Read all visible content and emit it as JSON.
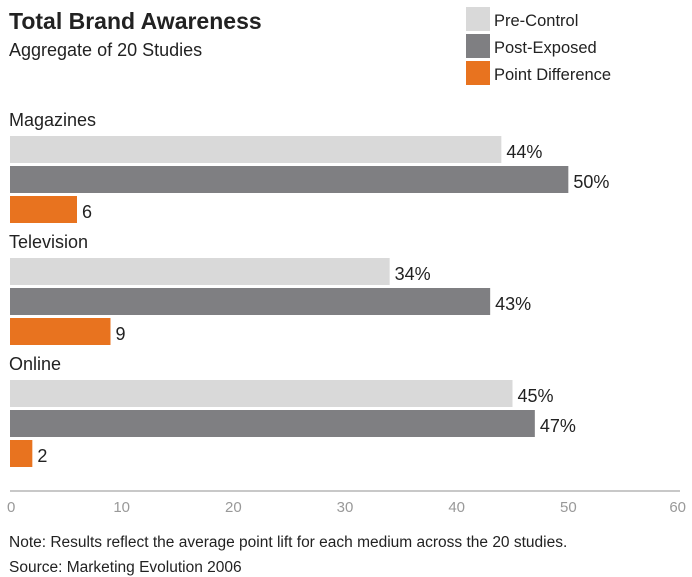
{
  "title": "Total Brand Awareness",
  "subtitle": "Aggregate of 20 Studies",
  "note": "Note: Results reflect the average point lift for each medium across the 20 studies.",
  "source": "Source: Marketing Evolution 2006",
  "legend": [
    {
      "label": "Pre-Control",
      "color": "#d9d9d9"
    },
    {
      "label": "Post-Exposed",
      "color": "#7f7f82"
    },
    {
      "label": "Point Difference",
      "color": "#e8731f"
    }
  ],
  "chart_data": {
    "type": "bar",
    "orientation": "horizontal",
    "title": "Total Brand Awareness",
    "subtitle": "Aggregate of 20 Studies",
    "categories": [
      "Magazines",
      "Television",
      "Online"
    ],
    "series": [
      {
        "name": "Pre-Control",
        "values": [
          44,
          34,
          45
        ],
        "labels": [
          "44%",
          "34%",
          "45%"
        ],
        "color": "#d9d9d9"
      },
      {
        "name": "Post-Exposed",
        "values": [
          50,
          43,
          47
        ],
        "labels": [
          "50%",
          "43%",
          "47%"
        ],
        "color": "#7f7f82"
      },
      {
        "name": "Point Difference",
        "values": [
          6,
          9,
          2
        ],
        "labels": [
          "6",
          "9",
          "2"
        ],
        "color": "#e8731f"
      }
    ],
    "xlim": [
      0,
      60
    ],
    "ticks": [
      "0",
      "10",
      "20",
      "30",
      "40",
      "50",
      "60"
    ],
    "legend_position": "top-right",
    "grid": false
  }
}
